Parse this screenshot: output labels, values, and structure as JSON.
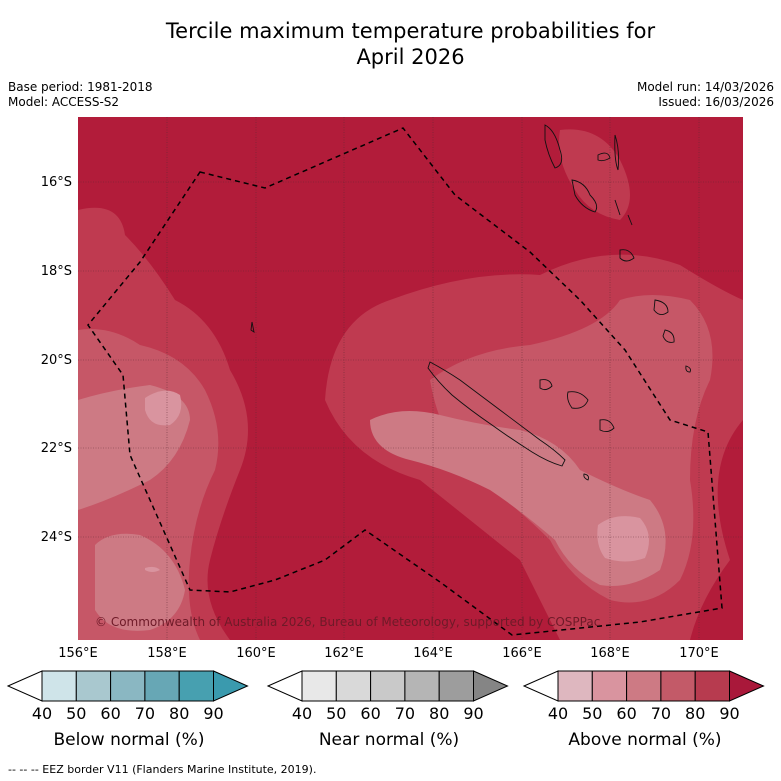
{
  "header": {
    "title_line1": "Tercile maximum temperature probabilities for",
    "title_line2": "April 2026"
  },
  "meta": {
    "base_period": "Base period: 1981-2018",
    "model": "Model: ACCESS-S2",
    "model_run": "Model run: 14/03/2026",
    "issued": "Issued: 16/03/2026"
  },
  "map": {
    "lat_labels": [
      "16°S",
      "18°S",
      "20°S",
      "22°S",
      "24°S"
    ],
    "lon_labels": [
      "156°E",
      "158°E",
      "160°E",
      "162°E",
      "164°E",
      "166°E",
      "168°E",
      "170°E"
    ],
    "copyright": "© Commonwealth of Australia 2026, Bureau of Meteorology, supported by COSPPac",
    "dominant_category": "Above normal"
  },
  "colorbars": [
    {
      "label": "Below normal (%)",
      "ticks": [
        "40",
        "50",
        "60",
        "70",
        "80",
        "90"
      ],
      "colors": [
        "#cfe4e9",
        "#a9c8cf",
        "#8ab7c2",
        "#67a7b5",
        "#47a0b0",
        "#3a9aae"
      ]
    },
    {
      "label": "Near normal (%)",
      "ticks": [
        "40",
        "50",
        "60",
        "70",
        "80",
        "90"
      ],
      "colors": [
        "#e8e8e8",
        "#d9d9d9",
        "#c9c9c9",
        "#b5b5b5",
        "#9d9d9d",
        "#858585"
      ]
    },
    {
      "label": "Above normal (%)",
      "ticks": [
        "40",
        "50",
        "60",
        "70",
        "80",
        "90"
      ],
      "colors": [
        "#deb7bf",
        "#d9949f",
        "#cd7a84",
        "#c35a68",
        "#b73b4f",
        "#a9183a"
      ]
    }
  ],
  "footer": {
    "legend": "--  --  -- EEZ border V11 (Flanders Marine Institute, 2019)."
  }
}
